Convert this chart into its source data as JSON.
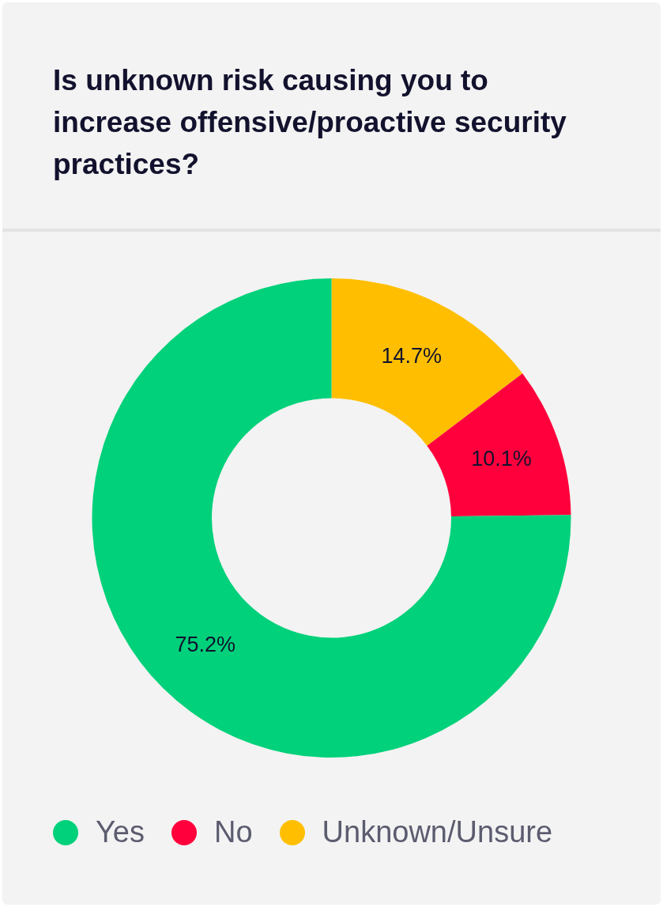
{
  "chart_data": {
    "type": "donut",
    "title": "Is unknown risk causing you to increase offensive/proactive security practices?",
    "categories": [
      "Unknown/Unsure",
      "No",
      "Yes"
    ],
    "values": [
      14.7,
      10.1,
      75.2
    ],
    "colors": [
      "#ffbf00",
      "#ff003c",
      "#00d17a"
    ],
    "value_labels": [
      "14.7%",
      "10.1%",
      "75.2%"
    ],
    "legend": "bottom"
  }
}
